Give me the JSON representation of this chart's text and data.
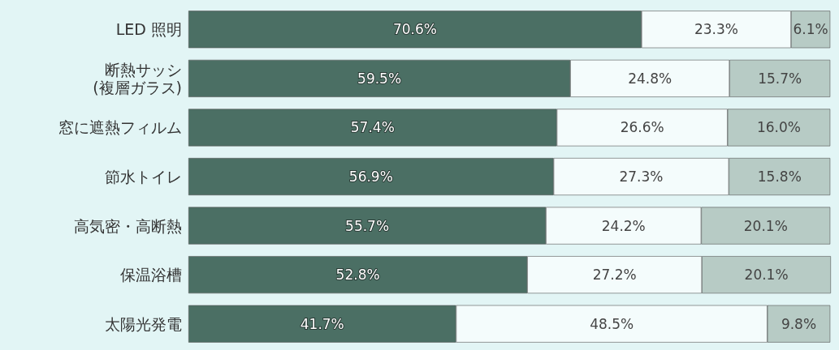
{
  "chart_data": {
    "type": "bar",
    "orientation": "horizontal",
    "stacked": true,
    "tick_labels": "y",
    "categories": [
      "LED 照明",
      "断熱サッシ\n(複層ガラス)",
      "窓に遮熱フィルム",
      "節水トイレ",
      "高気密・高断熱",
      "保温浴槽",
      "太陽光発電"
    ],
    "series": [
      {
        "color": "#4b6f64",
        "values": [
          70.6,
          59.5,
          57.4,
          56.9,
          55.7,
          52.8,
          41.7
        ],
        "value_labels": [
          "70.6%",
          "59.5%",
          "57.4%",
          "56.9%",
          "55.7%",
          "52.8%",
          "41.7%"
        ]
      },
      {
        "color": "#f4fcfc",
        "values": [
          23.3,
          24.8,
          26.6,
          27.3,
          24.2,
          27.2,
          48.5
        ],
        "value_labels": [
          "23.3%",
          "24.8%",
          "26.6%",
          "27.3%",
          "24.2%",
          "27.2%",
          "48.5%"
        ]
      },
      {
        "color": "#b7cbc5",
        "values": [
          6.1,
          15.7,
          16.0,
          15.8,
          20.1,
          20.1,
          9.8
        ],
        "value_labels": [
          "6.1%",
          "15.7%",
          "16.0%",
          "15.8%",
          "20.1%",
          "20.1%",
          "9.8%"
        ]
      }
    ]
  }
}
